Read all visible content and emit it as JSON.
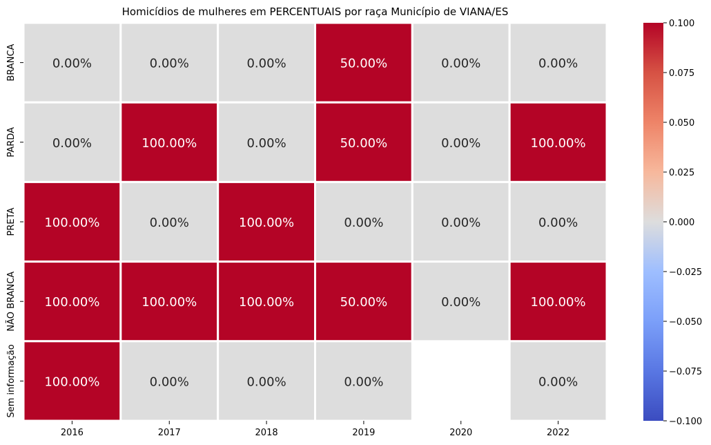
{
  "chart_data": {
    "type": "heatmap",
    "title": "Homicídios de mulheres em PERCENTUAIS por raça Município de VIANA/ES",
    "xlabel": "",
    "ylabel": "",
    "x": [
      "2016",
      "2017",
      "2018",
      "2019",
      "2020",
      "2022"
    ],
    "y": [
      "BRANCA",
      "PARDA",
      "PRETA",
      "NÃO BRANCA",
      "Sem informação"
    ],
    "values": [
      [
        0,
        0,
        0,
        0.5,
        0,
        0
      ],
      [
        0,
        1,
        0,
        0.5,
        0,
        1
      ],
      [
        1,
        0,
        1,
        0,
        0,
        0
      ],
      [
        1,
        1,
        1,
        0.5,
        0,
        1
      ],
      [
        1,
        0,
        0,
        0,
        null,
        0
      ]
    ],
    "annotations": [
      [
        "0.00%",
        "0.00%",
        "0.00%",
        "50.00%",
        "0.00%",
        "0.00%"
      ],
      [
        "0.00%",
        "100.00%",
        "0.00%",
        "50.00%",
        "0.00%",
        "100.00%"
      ],
      [
        "100.00%",
        "0.00%",
        "100.00%",
        "0.00%",
        "0.00%",
        "0.00%"
      ],
      [
        "100.00%",
        "100.00%",
        "100.00%",
        "50.00%",
        "0.00%",
        "100.00%"
      ],
      [
        "100.00%",
        "0.00%",
        "0.00%",
        "0.00%",
        "",
        "0.00%"
      ]
    ],
    "colorbar": {
      "cmap": "coolwarm",
      "vmin": -0.1,
      "vmax": 0.1,
      "ticks": [
        "−0.100",
        "−0.075",
        "−0.050",
        "−0.025",
        "0.000",
        "0.025",
        "0.050",
        "0.075",
        "0.100"
      ]
    },
    "colors": {
      "high": "#b40426",
      "zero": "#dddddd",
      "low": "#3b4cc0",
      "grid": "#ffffff"
    },
    "grid": false,
    "legend": "colorbar-right"
  }
}
